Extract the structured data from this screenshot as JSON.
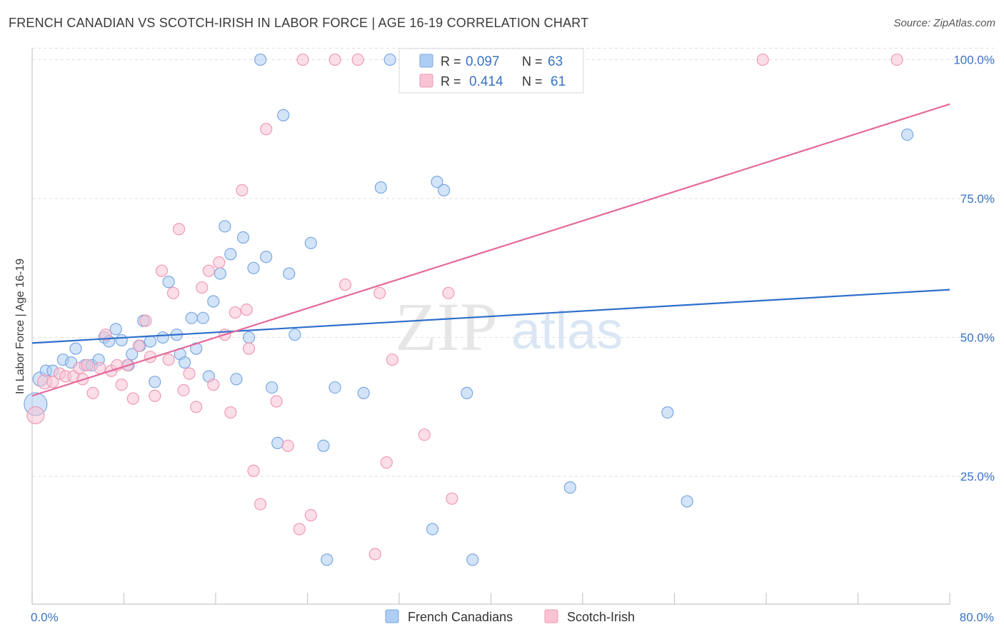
{
  "title": "FRENCH CANADIAN VS SCOTCH-IRISH IN LABOR FORCE | AGE 16-19 CORRELATION CHART",
  "source": "Source: ZipAtlas.com",
  "watermark": {
    "zip": "ZIP",
    "atlas": "atlas"
  },
  "colors": {
    "blue_fill": "#aecdf4",
    "blue_stroke": "#7aa8e0",
    "blue_line": "#2f6fcc",
    "pink_fill": "#f8c3d3",
    "pink_stroke": "#f09ab4",
    "pink_line": "#e4699a",
    "tick_label": "#3a72c4",
    "axis": "#c8c8c8",
    "grid": "#dedede"
  },
  "legend": {
    "entries": [
      {
        "r_label": "R =",
        "r_value": "0.097",
        "n_label": "N =",
        "n_value": "63",
        "color": "blue"
      },
      {
        "r_label": "R =",
        "r_value": "0.414",
        "n_label": "N =",
        "n_value": "61",
        "color": "pink"
      }
    ]
  },
  "bottom_legend": [
    "French Canadians",
    "Scotch-Irish"
  ],
  "chart_data": {
    "type": "scatter",
    "ylabel": "In Labor Force | Age 16-19",
    "xlim": [
      0,
      80
    ],
    "ylim": [
      2,
      102
    ],
    "x_tick_labels": {
      "min": "0.0%",
      "max": "80.0%"
    },
    "y_ticks": [
      {
        "value": 100,
        "label": "100.0%"
      },
      {
        "value": 75,
        "label": "75.0%"
      },
      {
        "value": 50,
        "label": "50.0%"
      },
      {
        "value": 25,
        "label": "25.0%"
      }
    ],
    "grid": true,
    "series": [
      {
        "name": "French Canadians",
        "color": "blue",
        "trend": {
          "x": [
            0,
            80
          ],
          "y": [
            49.0,
            58.6
          ]
        },
        "points": [
          [
            0.3,
            38,
            16
          ],
          [
            0.7,
            42.5,
            10
          ],
          [
            1.2,
            44,
            8
          ],
          [
            1.8,
            44,
            8
          ],
          [
            2.7,
            46,
            8
          ],
          [
            3.8,
            48,
            8
          ],
          [
            3.4,
            45.5,
            8
          ],
          [
            4.6,
            45,
            8
          ],
          [
            5.2,
            45,
            8
          ],
          [
            5.8,
            46,
            8
          ],
          [
            6.3,
            50,
            8
          ],
          [
            6.7,
            49.3,
            8
          ],
          [
            7.3,
            51.5,
            8
          ],
          [
            7.8,
            49.5,
            8
          ],
          [
            8.4,
            45,
            8
          ],
          [
            8.7,
            47,
            8
          ],
          [
            9.4,
            48.5,
            8
          ],
          [
            9.7,
            53,
            8
          ],
          [
            10.3,
            49.3,
            8
          ],
          [
            10.7,
            42,
            8
          ],
          [
            11.4,
            50,
            8
          ],
          [
            11.9,
            60,
            8
          ],
          [
            12.6,
            50.5,
            8
          ],
          [
            12.9,
            47,
            8
          ],
          [
            13.3,
            45.5,
            8
          ],
          [
            13.9,
            53.5,
            8
          ],
          [
            14.3,
            48,
            8
          ],
          [
            14.9,
            53.5,
            8
          ],
          [
            15.4,
            43,
            8
          ],
          [
            15.8,
            56.5,
            8
          ],
          [
            16.4,
            61.5,
            8
          ],
          [
            16.8,
            70,
            8
          ],
          [
            17.3,
            65,
            8
          ],
          [
            17.8,
            42.5,
            8
          ],
          [
            18.4,
            68,
            8
          ],
          [
            18.9,
            50,
            8
          ],
          [
            19.3,
            62.5,
            8
          ],
          [
            19.9,
            100,
            8
          ],
          [
            20.4,
            64.5,
            8
          ],
          [
            20.9,
            41,
            8
          ],
          [
            21.4,
            31,
            8
          ],
          [
            21.9,
            90,
            8
          ],
          [
            22.4,
            61.5,
            8
          ],
          [
            22.9,
            50.5,
            8
          ],
          [
            24.3,
            67,
            8
          ],
          [
            25.4,
            30.5,
            8
          ],
          [
            25.7,
            10,
            8
          ],
          [
            26.4,
            41,
            8
          ],
          [
            28.9,
            40,
            8
          ],
          [
            30.4,
            77,
            8
          ],
          [
            31.2,
            100,
            8
          ],
          [
            32.9,
            100,
            8
          ],
          [
            34.9,
            15.5,
            8
          ],
          [
            35.3,
            78,
            8
          ],
          [
            35.9,
            76.5,
            8
          ],
          [
            37.9,
            40,
            8
          ],
          [
            38.4,
            10,
            8
          ],
          [
            46.9,
            23,
            8
          ],
          [
            55.4,
            36.5,
            8
          ],
          [
            57.1,
            20.5,
            8
          ],
          [
            76.3,
            86.5,
            8
          ]
        ]
      },
      {
        "name": "Scotch-Irish",
        "color": "pink",
        "trend": {
          "x": [
            0,
            80
          ],
          "y": [
            39.5,
            92.0
          ]
        },
        "points": [
          [
            0.3,
            36,
            12
          ],
          [
            1.1,
            42,
            10
          ],
          [
            1.8,
            42,
            8
          ],
          [
            2.4,
            43.5,
            8
          ],
          [
            2.9,
            43,
            8
          ],
          [
            3.6,
            43,
            8
          ],
          [
            4.1,
            44.5,
            8
          ],
          [
            4.4,
            42.5,
            8
          ],
          [
            4.8,
            45,
            8
          ],
          [
            5.3,
            40,
            8
          ],
          [
            5.9,
            44.5,
            8
          ],
          [
            6.4,
            50.5,
            8
          ],
          [
            6.9,
            44,
            8
          ],
          [
            7.4,
            45,
            8
          ],
          [
            7.8,
            41.5,
            8
          ],
          [
            8.3,
            45,
            8
          ],
          [
            8.8,
            39,
            8
          ],
          [
            9.3,
            48.5,
            8
          ],
          [
            9.9,
            53,
            8
          ],
          [
            10.3,
            46.5,
            8
          ],
          [
            10.7,
            39.5,
            8
          ],
          [
            11.3,
            62,
            8
          ],
          [
            11.9,
            46,
            8
          ],
          [
            12.3,
            58,
            8
          ],
          [
            12.8,
            69.5,
            8
          ],
          [
            13.2,
            40.5,
            8
          ],
          [
            13.7,
            43.5,
            8
          ],
          [
            14.3,
            37.5,
            8
          ],
          [
            14.8,
            59,
            8
          ],
          [
            15.4,
            62,
            8
          ],
          [
            15.8,
            41.5,
            8
          ],
          [
            16.3,
            63.5,
            8
          ],
          [
            16.8,
            50.5,
            8
          ],
          [
            17.3,
            36.5,
            8
          ],
          [
            17.7,
            54.5,
            8
          ],
          [
            18.3,
            76.5,
            8
          ],
          [
            18.7,
            55,
            8
          ],
          [
            18.9,
            48,
            8
          ],
          [
            19.3,
            26,
            8
          ],
          [
            19.9,
            20,
            8
          ],
          [
            20.4,
            87.5,
            8
          ],
          [
            21.3,
            38.5,
            8
          ],
          [
            22.3,
            30.5,
            8
          ],
          [
            23.3,
            15.5,
            8
          ],
          [
            23.6,
            100,
            8
          ],
          [
            24.3,
            18,
            8
          ],
          [
            26.4,
            100,
            8
          ],
          [
            27.3,
            59.5,
            8
          ],
          [
            28.4,
            100,
            8
          ],
          [
            29.9,
            11,
            8
          ],
          [
            30.3,
            58,
            8
          ],
          [
            30.9,
            27.5,
            8
          ],
          [
            31.4,
            46,
            8
          ],
          [
            32.7,
            100,
            8
          ],
          [
            34.2,
            32.5,
            8
          ],
          [
            36.3,
            58,
            8
          ],
          [
            36.6,
            21,
            8
          ],
          [
            63.7,
            100,
            8
          ],
          [
            75.4,
            100,
            8
          ]
        ]
      }
    ]
  }
}
